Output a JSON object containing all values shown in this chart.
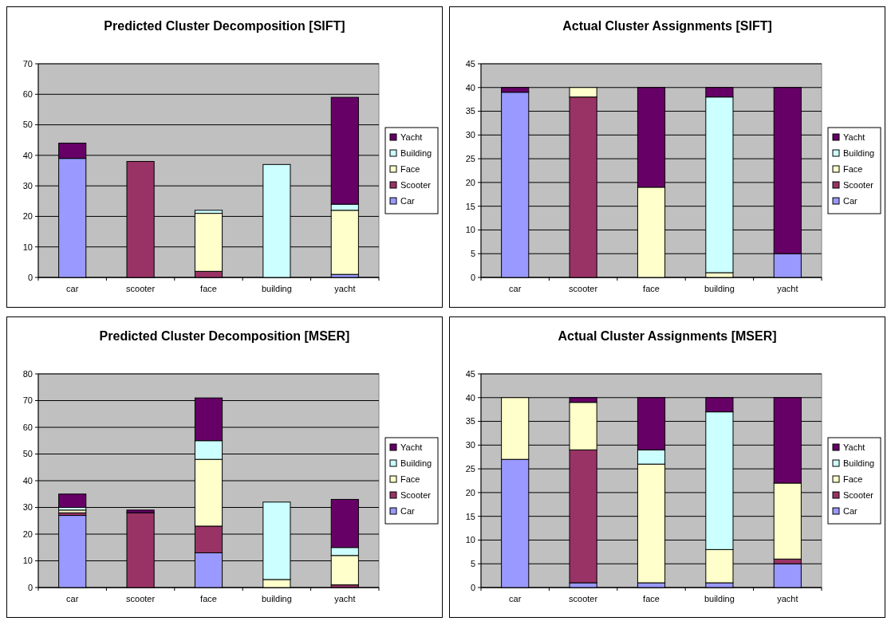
{
  "chart_data": [
    {
      "type": "bar",
      "title": "Predicted Cluster Decomposition [SIFT]",
      "categories": [
        "car",
        "scooter",
        "face",
        "building",
        "yacht"
      ],
      "stacked": true,
      "ylim": [
        0,
        70
      ],
      "yticks": [
        0,
        10,
        20,
        30,
        40,
        50,
        60,
        70
      ],
      "grid": "y",
      "legend": "right",
      "series": [
        {
          "name": "Car",
          "color": "#9999ff",
          "values": [
            39,
            0,
            0,
            0,
            1
          ]
        },
        {
          "name": "Scooter",
          "color": "#993366",
          "values": [
            0,
            38,
            2,
            0,
            0
          ]
        },
        {
          "name": "Face",
          "color": "#ffffcc",
          "values": [
            0,
            0,
            19,
            0,
            21
          ]
        },
        {
          "name": "Building",
          "color": "#ccffff",
          "values": [
            0,
            0,
            1,
            37,
            2
          ]
        },
        {
          "name": "Yacht",
          "color": "#660066",
          "values": [
            5,
            0,
            0,
            0,
            35
          ]
        }
      ]
    },
    {
      "type": "bar",
      "title": "Actual Cluster Assignments [SIFT]",
      "categories": [
        "car",
        "scooter",
        "face",
        "building",
        "yacht"
      ],
      "stacked": true,
      "ylim": [
        0,
        45
      ],
      "yticks": [
        0,
        5,
        10,
        15,
        20,
        25,
        30,
        35,
        40,
        45
      ],
      "grid": "y",
      "legend": "right",
      "series": [
        {
          "name": "Car",
          "color": "#9999ff",
          "values": [
            39,
            0,
            0,
            0,
            5
          ]
        },
        {
          "name": "Scooter",
          "color": "#993366",
          "values": [
            0,
            38,
            0,
            0,
            0
          ]
        },
        {
          "name": "Face",
          "color": "#ffffcc",
          "values": [
            0,
            2,
            19,
            1,
            0
          ]
        },
        {
          "name": "Building",
          "color": "#ccffff",
          "values": [
            0,
            0,
            0,
            37,
            0
          ]
        },
        {
          "name": "Yacht",
          "color": "#660066",
          "values": [
            1,
            0,
            21,
            2,
            35
          ]
        }
      ]
    },
    {
      "type": "bar",
      "title": "Predicted Cluster Decomposition [MSER]",
      "categories": [
        "car",
        "scooter",
        "face",
        "building",
        "yacht"
      ],
      "stacked": true,
      "ylim": [
        0,
        80
      ],
      "yticks": [
        0,
        10,
        20,
        30,
        40,
        50,
        60,
        70,
        80
      ],
      "grid": "y",
      "legend": "right",
      "series": [
        {
          "name": "Car",
          "color": "#9999ff",
          "values": [
            27,
            0,
            13,
            0,
            0
          ]
        },
        {
          "name": "Scooter",
          "color": "#993366",
          "values": [
            1,
            28,
            10,
            0,
            1
          ]
        },
        {
          "name": "Face",
          "color": "#ffffcc",
          "values": [
            1,
            0,
            25,
            3,
            11
          ]
        },
        {
          "name": "Building",
          "color": "#ccffff",
          "values": [
            1,
            0,
            7,
            29,
            3
          ]
        },
        {
          "name": "Yacht",
          "color": "#660066",
          "values": [
            5,
            1,
            16,
            0,
            18
          ]
        }
      ]
    },
    {
      "type": "bar",
      "title": "Actual Cluster Assignments [MSER]",
      "categories": [
        "car",
        "scooter",
        "face",
        "building",
        "yacht"
      ],
      "stacked": true,
      "ylim": [
        0,
        45
      ],
      "yticks": [
        0,
        5,
        10,
        15,
        20,
        25,
        30,
        35,
        40,
        45
      ],
      "grid": "y",
      "legend": "right",
      "series": [
        {
          "name": "Car",
          "color": "#9999ff",
          "values": [
            27,
            1,
            1,
            1,
            5
          ]
        },
        {
          "name": "Scooter",
          "color": "#993366",
          "values": [
            0,
            28,
            0,
            0,
            1
          ]
        },
        {
          "name": "Face",
          "color": "#ffffcc",
          "values": [
            13,
            10,
            25,
            7,
            16
          ]
        },
        {
          "name": "Building",
          "color": "#ccffff",
          "values": [
            0,
            0,
            3,
            29,
            0
          ]
        },
        {
          "name": "Yacht",
          "color": "#660066",
          "values": [
            0,
            1,
            11,
            3,
            18
          ]
        }
      ]
    }
  ]
}
